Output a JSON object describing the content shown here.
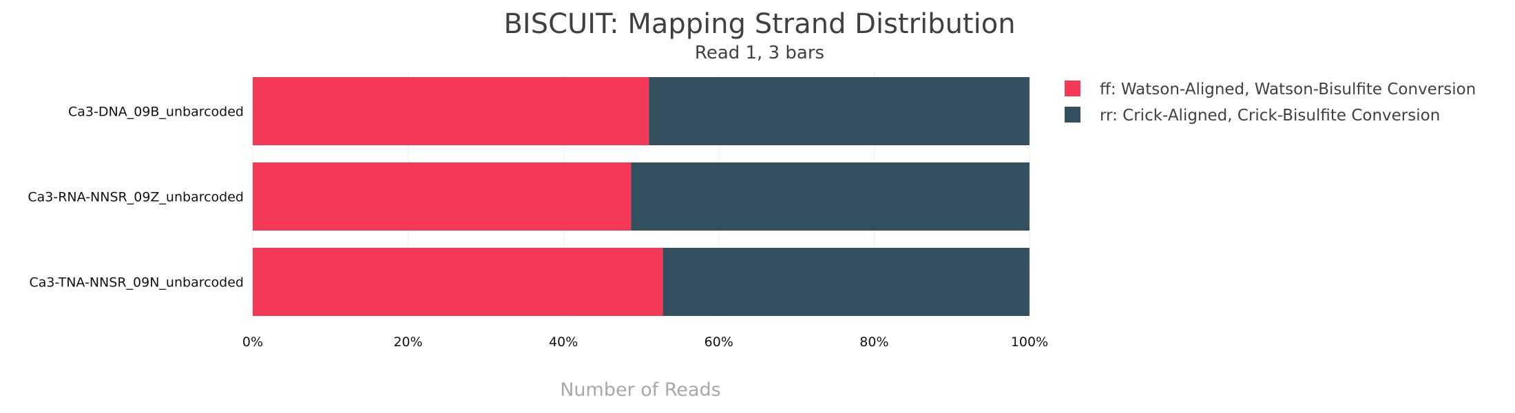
{
  "chart_data": {
    "type": "bar",
    "orientation": "horizontal",
    "stacked": true,
    "normalized": true,
    "title": "BISCUIT: Mapping Strand Distribution",
    "subtitle": "Read 1, 3 bars",
    "xlabel": "Number of Reads",
    "ylabel": "",
    "xlim": [
      0,
      100
    ],
    "x_ticks": [
      "0%",
      "20%",
      "40%",
      "60%",
      "80%",
      "100%"
    ],
    "grid": true,
    "legend_position": "right",
    "categories": [
      "Ca3-DNA_09B_unbarcoded",
      "Ca3-RNA-NNSR_09Z_unbarcoded",
      "Ca3-TNA-NNSR_09N_unbarcoded"
    ],
    "series": [
      {
        "name": "ff: Watson-Aligned, Watson-Bisulfite Conversion",
        "color": "#f53855",
        "values": [
          51,
          48.7,
          52.8
        ]
      },
      {
        "name": "rr: Crick-Aligned, Crick-Bisulfite Conversion",
        "color": "#34505f",
        "values": [
          49,
          51.3,
          47.2
        ]
      }
    ]
  }
}
